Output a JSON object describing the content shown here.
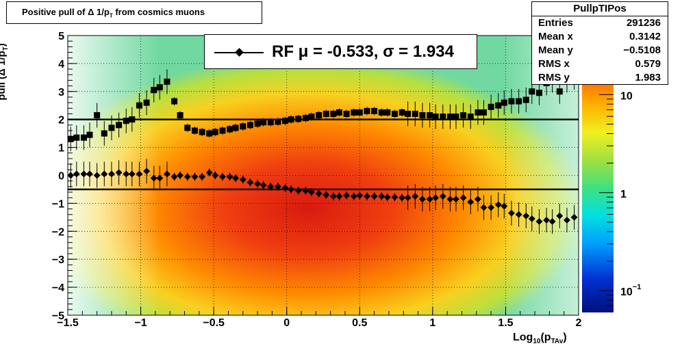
{
  "title": {
    "prefix": "Positive pull of ",
    "delta": "Δ",
    "mid": " 1/p",
    "sub": "T",
    "suffix": " from cosmics muons"
  },
  "stats": {
    "name": "PullpTIPos",
    "rows": [
      {
        "k": "Entries",
        "v": "291236"
      },
      {
        "k": "Mean x",
        "v": "0.3142"
      },
      {
        "k": "Mean y",
        "v": "−0.5108"
      },
      {
        "k": "RMS x",
        "v": "0.579"
      },
      {
        "k": "RMS y",
        "v": "1.983"
      }
    ]
  },
  "legend": {
    "text": "RF μ = -0.533, σ =   1.934"
  },
  "axis_labels": {
    "y_prefix": "pull (",
    "y_delta": "Δ",
    "y_mid": " 1/p",
    "y_sub": "T",
    "y_suffix": ")",
    "x_prefix": "Log",
    "x_sub": "10",
    "x_mid": "(p",
    "x_sub2": "TAv",
    "x_suffix": ")"
  },
  "chart_data": {
    "type": "scatter",
    "xlim": [
      -1.5,
      2
    ],
    "ylim": [
      -5,
      5
    ],
    "x_ticks": [
      "−1.5",
      "−1",
      "−0.5",
      "0",
      "0.5",
      "1",
      "1.5",
      "2"
    ],
    "y_ticks": [
      "5",
      "4",
      "3",
      "2",
      "1",
      "0",
      "−1",
      "−2",
      "−3",
      "−4",
      "−5"
    ],
    "grid": true,
    "colorbar": {
      "scale": "log",
      "range": [
        0.06,
        40
      ],
      "ticks": [
        "10",
        "1",
        "10−1"
      ]
    },
    "series": [
      {
        "marker": "square",
        "points": [
          [
            -1.48,
            1.3
          ],
          [
            -1.44,
            1.35
          ],
          [
            -1.39,
            1.35
          ],
          [
            -1.35,
            1.45
          ],
          [
            -1.3,
            2.15
          ],
          [
            -1.25,
            1.5
          ],
          [
            -1.2,
            1.7
          ],
          [
            -1.15,
            1.8
          ],
          [
            -1.1,
            1.95
          ],
          [
            -1.06,
            2.0
          ],
          [
            -1.01,
            2.5
          ],
          [
            -0.96,
            2.6
          ],
          [
            -0.91,
            3.05
          ],
          [
            -0.87,
            3.15
          ],
          [
            -0.82,
            3.35
          ],
          [
            -0.77,
            2.65
          ],
          [
            -0.73,
            2.15
          ],
          [
            -0.68,
            1.7
          ],
          [
            -0.63,
            1.6
          ],
          [
            -0.58,
            1.55
          ],
          [
            -0.53,
            1.5
          ],
          [
            -0.49,
            1.55
          ],
          [
            -0.44,
            1.6
          ],
          [
            -0.39,
            1.65
          ],
          [
            -0.35,
            1.7
          ],
          [
            -0.3,
            1.75
          ],
          [
            -0.25,
            1.8
          ],
          [
            -0.2,
            1.85
          ],
          [
            -0.16,
            1.9
          ],
          [
            -0.11,
            1.9
          ],
          [
            -0.06,
            1.92
          ],
          [
            -0.01,
            1.95
          ],
          [
            0.03,
            2.0
          ],
          [
            0.08,
            2.02
          ],
          [
            0.13,
            2.05
          ],
          [
            0.17,
            2.1
          ],
          [
            0.22,
            2.15
          ],
          [
            0.27,
            2.2
          ],
          [
            0.32,
            2.2
          ],
          [
            0.36,
            2.25
          ],
          [
            0.41,
            2.2
          ],
          [
            0.46,
            2.25
          ],
          [
            0.5,
            2.25
          ],
          [
            0.55,
            2.3
          ],
          [
            0.6,
            2.3
          ],
          [
            0.65,
            2.25
          ],
          [
            0.69,
            2.25
          ],
          [
            0.74,
            2.2
          ],
          [
            0.79,
            2.25
          ],
          [
            0.83,
            2.2
          ],
          [
            0.88,
            2.2
          ],
          [
            0.93,
            2.15
          ],
          [
            0.98,
            2.15
          ],
          [
            1.02,
            2.1
          ],
          [
            1.07,
            2.1
          ],
          [
            1.12,
            2.1
          ],
          [
            1.16,
            2.1
          ],
          [
            1.21,
            2.15
          ],
          [
            1.26,
            2.1
          ],
          [
            1.31,
            2.25
          ],
          [
            1.35,
            2.25
          ],
          [
            1.4,
            2.45
          ],
          [
            1.45,
            2.5
          ],
          [
            1.49,
            2.6
          ],
          [
            1.54,
            2.65
          ],
          [
            1.59,
            2.65
          ],
          [
            1.64,
            2.7
          ],
          [
            1.68,
            3.0
          ],
          [
            1.73,
            2.95
          ],
          [
            1.78,
            3.3
          ],
          [
            1.82,
            3.4
          ],
          [
            1.87,
            3.0
          ],
          [
            1.92,
            3.4
          ],
          [
            1.97,
            3.5
          ]
        ]
      },
      {
        "marker": "diamond",
        "points": [
          [
            -1.48,
            0.0
          ],
          [
            -1.44,
            0.05
          ],
          [
            -1.39,
            0.05
          ],
          [
            -1.35,
            0.05
          ],
          [
            -1.3,
            0.0
          ],
          [
            -1.25,
            0.05
          ],
          [
            -1.2,
            0.05
          ],
          [
            -1.15,
            0.1
          ],
          [
            -1.1,
            0.05
          ],
          [
            -1.06,
            0.05
          ],
          [
            -1.01,
            0.05
          ],
          [
            -0.96,
            0.15
          ],
          [
            -0.91,
            -0.1
          ],
          [
            -0.87,
            -0.1
          ],
          [
            -0.82,
            0.05
          ],
          [
            -0.77,
            -0.05
          ],
          [
            -0.73,
            0.0
          ],
          [
            -0.68,
            -0.05
          ],
          [
            -0.63,
            -0.05
          ],
          [
            -0.58,
            -0.05
          ],
          [
            -0.53,
            0.1
          ],
          [
            -0.49,
            0.0
          ],
          [
            -0.44,
            -0.05
          ],
          [
            -0.39,
            -0.05
          ],
          [
            -0.35,
            -0.1
          ],
          [
            -0.3,
            -0.15
          ],
          [
            -0.25,
            -0.25
          ],
          [
            -0.2,
            -0.3
          ],
          [
            -0.16,
            -0.35
          ],
          [
            -0.11,
            -0.4
          ],
          [
            -0.06,
            -0.4
          ],
          [
            -0.01,
            -0.45
          ],
          [
            0.03,
            -0.5
          ],
          [
            0.08,
            -0.55
          ],
          [
            0.13,
            -0.55
          ],
          [
            0.17,
            -0.6
          ],
          [
            0.22,
            -0.65
          ],
          [
            0.27,
            -0.7
          ],
          [
            0.32,
            -0.75
          ],
          [
            0.36,
            -0.75
          ],
          [
            0.41,
            -0.72
          ],
          [
            0.46,
            -0.75
          ],
          [
            0.5,
            -0.72
          ],
          [
            0.55,
            -0.75
          ],
          [
            0.6,
            -0.75
          ],
          [
            0.65,
            -0.75
          ],
          [
            0.69,
            -0.78
          ],
          [
            0.74,
            -0.78
          ],
          [
            0.79,
            -0.8
          ],
          [
            0.83,
            -0.8
          ],
          [
            0.88,
            -0.75
          ],
          [
            0.93,
            -0.85
          ],
          [
            0.98,
            -0.85
          ],
          [
            1.02,
            -0.8
          ],
          [
            1.07,
            -0.75
          ],
          [
            1.12,
            -0.85
          ],
          [
            1.16,
            -0.85
          ],
          [
            1.21,
            -0.8
          ],
          [
            1.26,
            -0.95
          ],
          [
            1.31,
            -0.85
          ],
          [
            1.35,
            -1.15
          ],
          [
            1.4,
            -1.15
          ],
          [
            1.45,
            -1.05
          ],
          [
            1.49,
            -1.1
          ],
          [
            1.54,
            -1.35
          ],
          [
            1.59,
            -1.4
          ],
          [
            1.64,
            -1.45
          ],
          [
            1.68,
            -1.55
          ],
          [
            1.73,
            -1.65
          ],
          [
            1.78,
            -1.6
          ],
          [
            1.82,
            -1.65
          ],
          [
            1.87,
            -1.45
          ],
          [
            1.92,
            -1.6
          ],
          [
            1.97,
            -1.5
          ]
        ]
      }
    ],
    "reference_lines": [
      2.0,
      -0.5
    ]
  }
}
